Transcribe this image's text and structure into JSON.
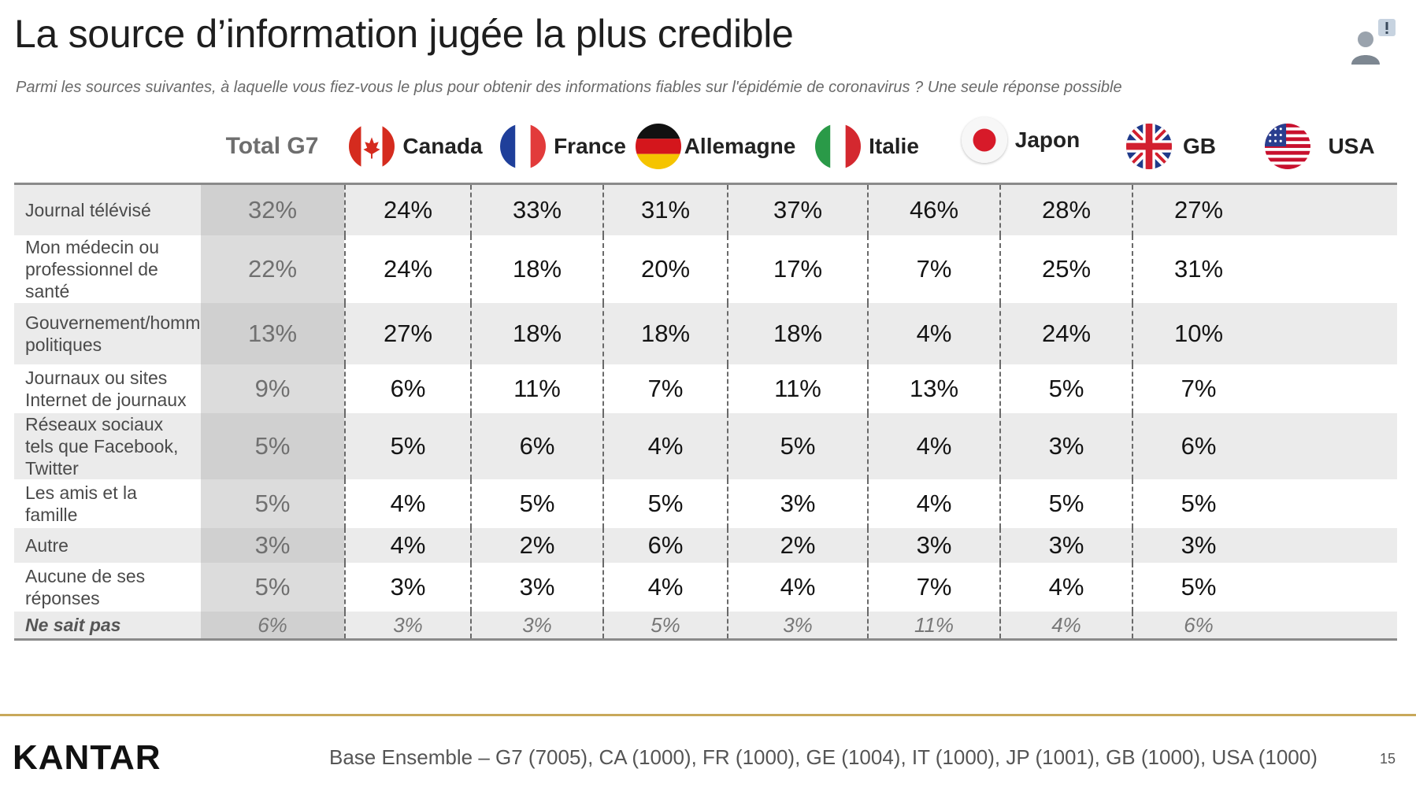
{
  "title": "La source d’information jugée la plus credible",
  "subtitle": "Parmi les sources suivantes, à laquelle vous fiez-vous le plus pour obtenir des informations fiables sur l'épidémie de coronavirus ? Une seule réponse possible",
  "header": {
    "total": "Total G7",
    "countries": [
      "Canada",
      "France",
      "Allemagne",
      "Italie",
      "Japon",
      "GB",
      "USA"
    ]
  },
  "rows": [
    {
      "label": "Journal télévisé",
      "values": [
        "32%",
        "24%",
        "33%",
        "31%",
        "37%",
        "46%",
        "28%",
        "27%"
      ]
    },
    {
      "label": "Mon médecin ou professionnel de santé",
      "values": [
        "22%",
        "24%",
        "18%",
        "20%",
        "17%",
        "7%",
        "25%",
        "31%"
      ]
    },
    {
      "label": "Gouvernement/hommes politiques",
      "values": [
        "13%",
        "27%",
        "18%",
        "18%",
        "18%",
        "4%",
        "24%",
        "10%"
      ]
    },
    {
      "label": "Journaux ou sites Internet de journaux",
      "values": [
        "9%",
        "6%",
        "11%",
        "7%",
        "11%",
        "13%",
        "5%",
        "7%"
      ]
    },
    {
      "label": "Réseaux sociaux tels que Facebook, Twitter",
      "values": [
        "5%",
        "5%",
        "6%",
        "4%",
        "5%",
        "4%",
        "3%",
        "6%"
      ]
    },
    {
      "label": "Les amis et la famille",
      "values": [
        "5%",
        "4%",
        "5%",
        "5%",
        "3%",
        "4%",
        "5%",
        "5%"
      ]
    },
    {
      "label": "Autre",
      "values": [
        "3%",
        "4%",
        "2%",
        "6%",
        "2%",
        "3%",
        "3%",
        "3%"
      ]
    },
    {
      "label": "Aucune de ses réponses",
      "values": [
        "5%",
        "3%",
        "3%",
        "4%",
        "4%",
        "7%",
        "4%",
        "5%"
      ]
    },
    {
      "label": "Ne sait pas",
      "values": [
        "6%",
        "3%",
        "3%",
        "5%",
        "3%",
        "11%",
        "4%",
        "6%"
      ]
    }
  ],
  "footer": {
    "logo": "KANTAR",
    "base": "Base Ensemble – G7 (7005), CA (1000), FR (1000), GE (1004), IT (1000), JP (1001), GB (1000), USA (1000)",
    "page": "15"
  },
  "icons": [
    "person-alert-icon",
    "flag-canada-icon",
    "flag-france-icon",
    "flag-germany-icon",
    "flag-italy-icon",
    "flag-japan-icon",
    "flag-uk-icon",
    "flag-usa-icon"
  ],
  "chart_data": {
    "type": "table",
    "columns": [
      "Total G7",
      "Canada",
      "France",
      "Allemagne",
      "Italie",
      "Japon",
      "GB",
      "USA"
    ],
    "categories": [
      "Journal télévisé",
      "Mon médecin ou professionnel de santé",
      "Gouvernement/hommes politiques",
      "Journaux ou sites Internet de journaux",
      "Réseaux sociaux tels que Facebook, Twitter",
      "Les amis et la famille",
      "Autre",
      "Aucune de ses réponses",
      "Ne sait pas"
    ],
    "series": [
      {
        "name": "Total G7",
        "values": [
          32,
          22,
          13,
          9,
          5,
          5,
          3,
          5,
          6
        ]
      },
      {
        "name": "Canada",
        "values": [
          24,
          24,
          27,
          6,
          5,
          4,
          4,
          3,
          3
        ]
      },
      {
        "name": "France",
        "values": [
          33,
          18,
          18,
          11,
          6,
          5,
          2,
          3,
          3
        ]
      },
      {
        "name": "Allemagne",
        "values": [
          31,
          20,
          18,
          7,
          4,
          5,
          6,
          4,
          5
        ]
      },
      {
        "name": "Italie",
        "values": [
          37,
          17,
          18,
          11,
          5,
          3,
          2,
          4,
          3
        ]
      },
      {
        "name": "Japon",
        "values": [
          46,
          7,
          4,
          13,
          4,
          4,
          3,
          7,
          11
        ]
      },
      {
        "name": "GB",
        "values": [
          28,
          25,
          24,
          5,
          3,
          5,
          3,
          4,
          4
        ]
      },
      {
        "name": "USA",
        "values": [
          27,
          31,
          10,
          7,
          6,
          5,
          3,
          5,
          6
        ]
      }
    ]
  }
}
